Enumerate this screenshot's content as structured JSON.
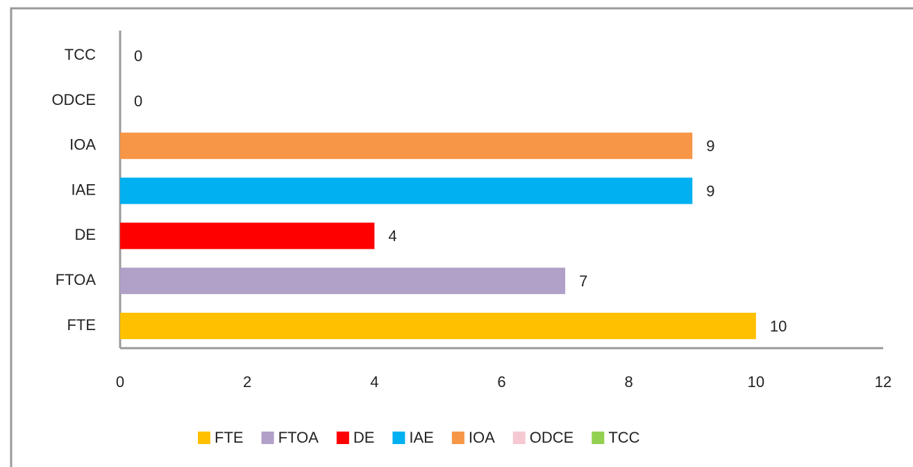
{
  "chart_data": {
    "type": "barh",
    "categories": [
      "FTE",
      "FTOA",
      "DE",
      "IAE",
      "IOA",
      "ODCE",
      "TCC"
    ],
    "values": [
      10,
      7,
      4,
      9,
      9,
      0,
      0
    ],
    "colors": [
      "#ffc000",
      "#b1a0c7",
      "#ff0000",
      "#00b0f0",
      "#f79646",
      "#f6c9d2",
      "#92d050"
    ],
    "xlim": [
      0,
      12
    ],
    "xticks": [
      0,
      2,
      4,
      6,
      8,
      10,
      12
    ],
    "grid": false,
    "legend": "bottom"
  }
}
